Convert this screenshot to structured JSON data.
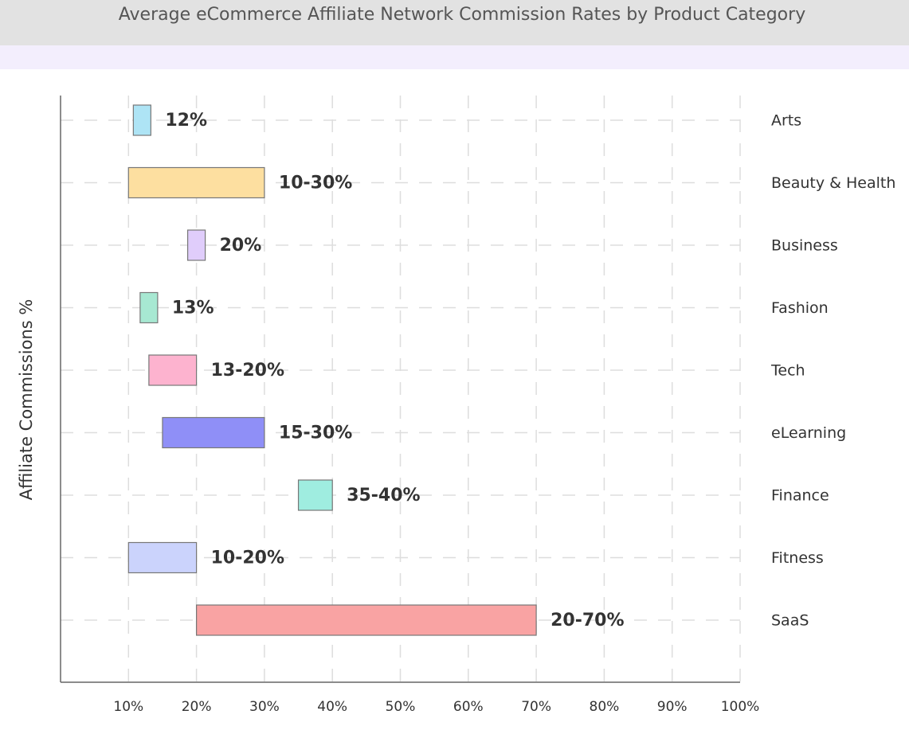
{
  "chart_data": {
    "type": "range-bar",
    "title": "Average eCommerce Affiliate Network Commission Rates by Product Category",
    "ylabel": "Affiliate Commissions %",
    "categories": [
      "Arts",
      "Beauty & Health",
      "Business",
      "Fashion",
      "Tech",
      "eLearning",
      "Finance",
      "Fitness",
      "SaaS"
    ],
    "low": [
      12,
      10,
      20,
      13,
      13,
      15,
      35,
      10,
      20
    ],
    "high": [
      12,
      30,
      20,
      13,
      20,
      30,
      40,
      20,
      70
    ],
    "value_labels": [
      "12%",
      "10-30%",
      "20%",
      "13%",
      "13-20%",
      "15-30%",
      "35-40%",
      "10-20%",
      "20-70%"
    ],
    "colors": [
      "#aee4f5",
      "#fddfa0",
      "#e0cdfb",
      "#a7e8d2",
      "#fdb3cf",
      "#8f8ff7",
      "#9fede0",
      "#cbd3fc",
      "#f9a3a3"
    ],
    "xlim": [
      0,
      100
    ],
    "xticks": [
      {
        "value": 10,
        "label": "10%"
      },
      {
        "value": 20,
        "label": "20%"
      },
      {
        "value": 30,
        "label": "30%"
      },
      {
        "value": 40,
        "label": "40%"
      },
      {
        "value": 50,
        "label": "50%"
      },
      {
        "value": 60,
        "label": "60%"
      },
      {
        "value": 70,
        "label": "70%"
      },
      {
        "value": 80,
        "label": "80%"
      },
      {
        "value": 90,
        "label": "90%"
      },
      {
        "value": 100,
        "label": "100%"
      }
    ],
    "grid": true
  }
}
